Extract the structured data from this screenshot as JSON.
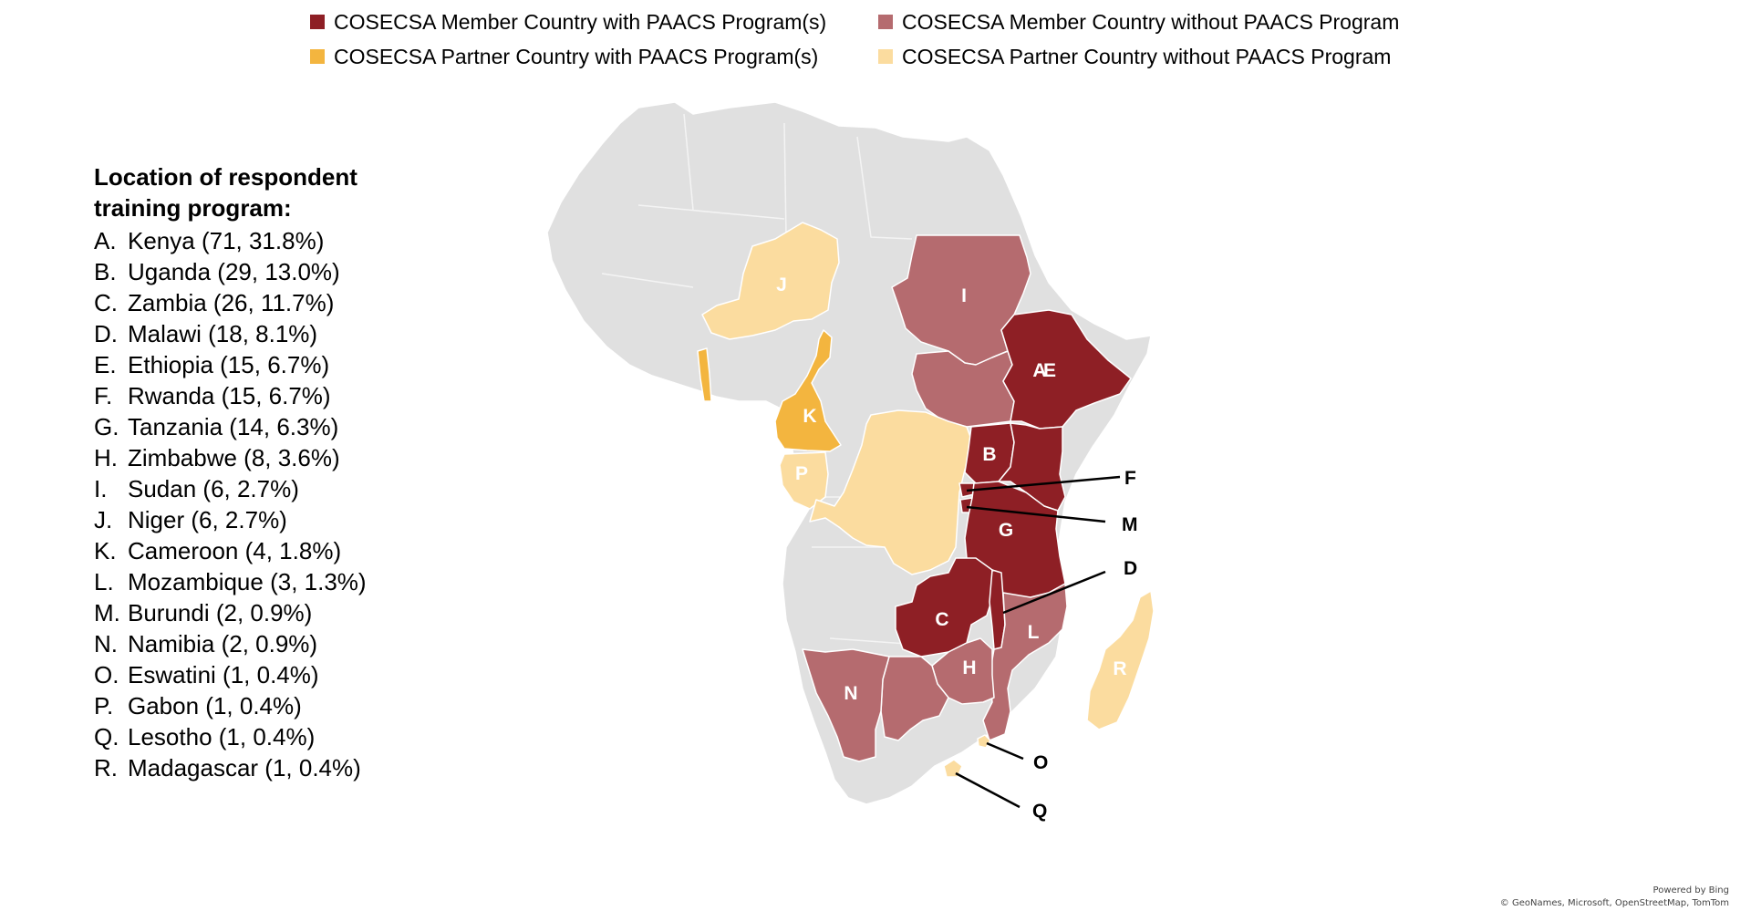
{
  "legend": [
    {
      "label": "COSECSA Member Country with PAACS Program(s)",
      "color": "#8e1f25"
    },
    {
      "label": "COSECSA Member Country without PAACS Program",
      "color": "#b56b6f"
    },
    {
      "label": "COSECSA Partner Country with PAACS Program(s)",
      "color": "#f3b53f"
    },
    {
      "label": "COSECSA Partner Country without PAACS Program",
      "color": "#fbdc9f"
    }
  ],
  "sidebar": {
    "heading_line1": "Location of respondent",
    "heading_line2": "training program:",
    "items": [
      {
        "letter": "A.",
        "text": "Kenya (71, 31.8%)"
      },
      {
        "letter": "B.",
        "text": "Uganda (29, 13.0%)"
      },
      {
        "letter": "C.",
        "text": "Zambia (26, 11.7%)"
      },
      {
        "letter": "D.",
        "text": "Malawi (18, 8.1%)"
      },
      {
        "letter": "E.",
        "text": "Ethiopia (15, 6.7%)"
      },
      {
        "letter": "F.",
        "text": "Rwanda (15, 6.7%)"
      },
      {
        "letter": "G.",
        "text": "Tanzania (14, 6.3%)"
      },
      {
        "letter": "H.",
        "text": "Zimbabwe (8, 3.6%)"
      },
      {
        "letter": "I.",
        "text": "Sudan (6, 2.7%)"
      },
      {
        "letter": "J.",
        "text": "Niger (6, 2.7%)"
      },
      {
        "letter": "K.",
        "text": "Cameroon (4, 1.8%)"
      },
      {
        "letter": "L.",
        "text": "Mozambique (3, 1.3%)"
      },
      {
        "letter": "M.",
        "text": "Burundi (2, 0.9%)"
      },
      {
        "letter": "N.",
        "text": "Namibia (2, 0.9%)"
      },
      {
        "letter": "O.",
        "text": "Eswatini (1, 0.4%)"
      },
      {
        "letter": "P.",
        "text": "Gabon (1, 0.4%)"
      },
      {
        "letter": "Q.",
        "text": "Lesotho (1, 0.4%)"
      },
      {
        "letter": "R.",
        "text": "Madagascar (1, 0.4%)"
      }
    ]
  },
  "map": {
    "countries": {
      "kenya": {
        "letter": "A",
        "category": "member-with"
      },
      "uganda": {
        "letter": "B",
        "category": "member-with"
      },
      "zambia": {
        "letter": "C",
        "category": "member-with"
      },
      "malawi": {
        "letter": "D",
        "category": "member-with"
      },
      "ethiopia": {
        "letter": "E",
        "category": "member-with"
      },
      "rwanda": {
        "letter": "F",
        "category": "member-with"
      },
      "tanzania": {
        "letter": "G",
        "category": "member-with"
      },
      "zimbabwe": {
        "letter": "H",
        "category": "member-without"
      },
      "sudan": {
        "letter": "I",
        "category": "member-without"
      },
      "niger": {
        "letter": "J",
        "category": "partner-without"
      },
      "cameroon": {
        "letter": "K",
        "category": "partner-with"
      },
      "mozambique": {
        "letter": "L",
        "category": "member-without"
      },
      "burundi": {
        "letter": "M",
        "category": "member-with"
      },
      "namibia": {
        "letter": "N",
        "category": "member-without"
      },
      "eswatini": {
        "letter": "O",
        "category": "partner-without"
      },
      "gabon": {
        "letter": "P",
        "category": "partner-without"
      },
      "lesotho": {
        "letter": "Q",
        "category": "partner-without"
      },
      "madagascar": {
        "letter": "R",
        "category": "partner-without"
      }
    },
    "colors": {
      "land": "#e0e0e0",
      "border": "#ffffff",
      "member_with": "#8e1f25",
      "member_without": "#b56b6f",
      "partner_with": "#f3b53f",
      "partner_without": "#fbdc9f"
    }
  },
  "credit": {
    "line1": "Powered by Bing",
    "line2": "© GeoNames, Microsoft, OpenStreetMap, TomTom"
  }
}
